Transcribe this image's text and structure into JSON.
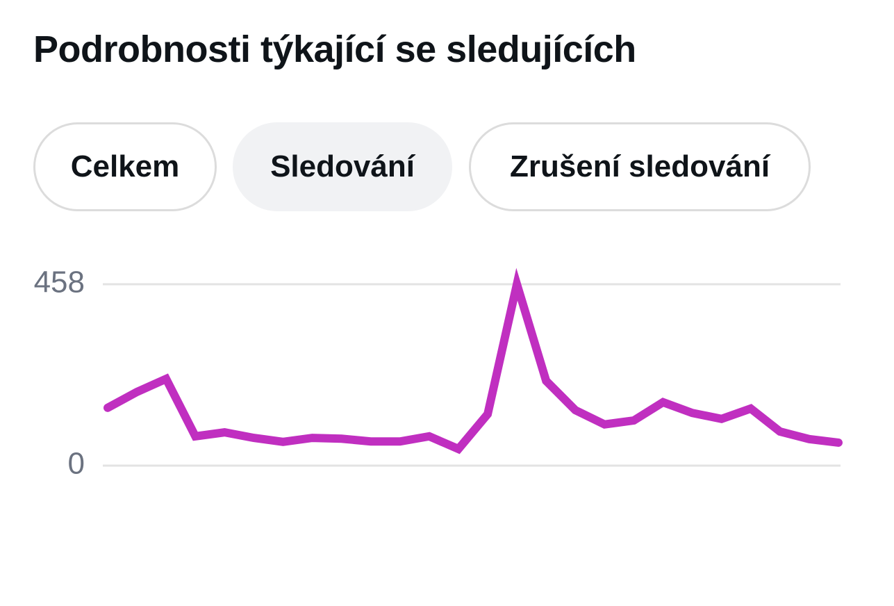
{
  "header": {
    "title": "Podrobnosti týkající se sledujících"
  },
  "tabs": {
    "items": [
      "Celkem",
      "Sledování",
      "Zrušení sledování"
    ],
    "selected": 1
  },
  "chart_data": {
    "type": "line",
    "color": "#c02fc0",
    "values": [
      146,
      186,
      219,
      74,
      84,
      70,
      60,
      70,
      68,
      61,
      61,
      74,
      42,
      130,
      458,
      214,
      140,
      104,
      114,
      160,
      133,
      118,
      144,
      86,
      67,
      58
    ],
    "ylim": [
      0,
      458
    ],
    "yticks": [
      0,
      458
    ],
    "grid": true
  }
}
